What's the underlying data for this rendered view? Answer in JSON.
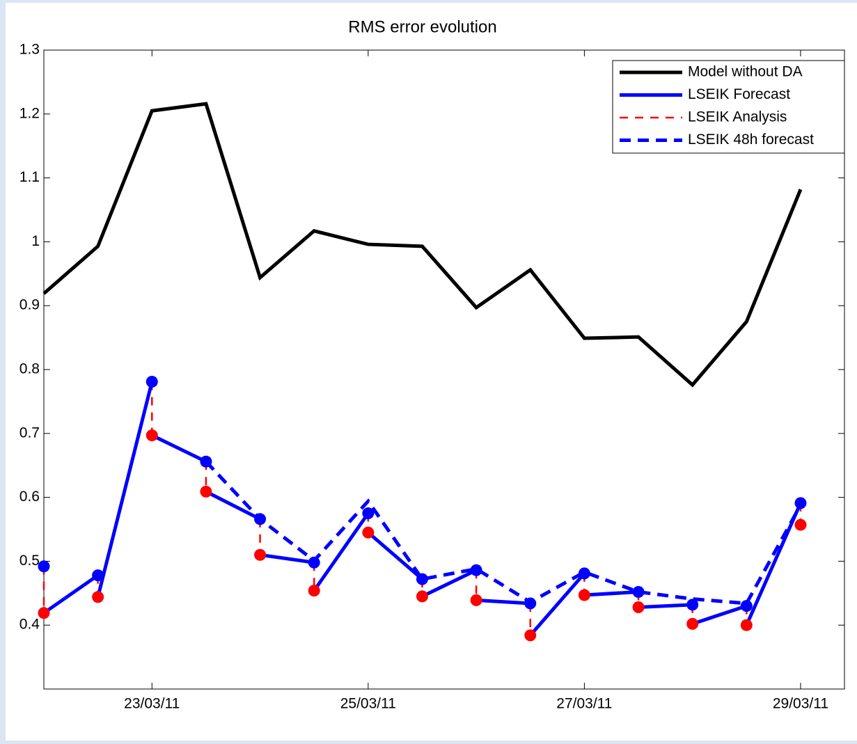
{
  "chart_data": {
    "type": "line",
    "title": "RMS error evolution",
    "categories": [
      null,
      null,
      "23/03/11",
      null,
      null,
      null,
      "25/03/11",
      null,
      null,
      null,
      "27/03/11",
      null,
      null,
      null,
      "29/03/11"
    ],
    "ylim": [
      0.3,
      1.3
    ],
    "yticks": [
      0.4,
      0.5,
      0.6,
      0.7,
      0.8,
      0.9,
      1,
      1.1,
      1.2,
      1.3
    ],
    "legend": "upper right",
    "series": [
      {
        "name": "Model without DA",
        "color": "#000000",
        "dash": false,
        "marker": false,
        "values": [
          0.919,
          0.993,
          1.205,
          1.216,
          0.944,
          1.017,
          0.996,
          0.993,
          0.897,
          0.956,
          0.849,
          0.851,
          0.776,
          0.875,
          1.082
        ]
      },
      {
        "name": "LSEIK Forecast",
        "color": "#0000ff",
        "dash": false,
        "marker": true,
        "values": [
          0.492,
          0.478,
          0.781,
          0.656,
          0.566,
          0.498,
          0.575,
          0.472,
          0.486,
          0.434,
          0.481,
          0.452,
          0.432,
          0.43,
          0.591
        ]
      },
      {
        "name": "LSEIK Analysis",
        "color": "#ff0000",
        "dash": true,
        "marker": true,
        "values": [
          0.419,
          0.444,
          0.697,
          0.609,
          0.51,
          0.454,
          0.545,
          0.445,
          0.439,
          0.384,
          0.447,
          0.428,
          0.402,
          0.4,
          0.557
        ]
      },
      {
        "name": "LSEIK 48h forecast",
        "color": "#0000ff",
        "dash": true,
        "marker": false,
        "values": [
          null,
          null,
          null,
          0.656,
          0.566,
          0.501,
          0.594,
          0.472,
          0.488,
          0.436,
          0.483,
          0.452,
          0.441,
          0.434,
          0.588
        ]
      }
    ]
  }
}
